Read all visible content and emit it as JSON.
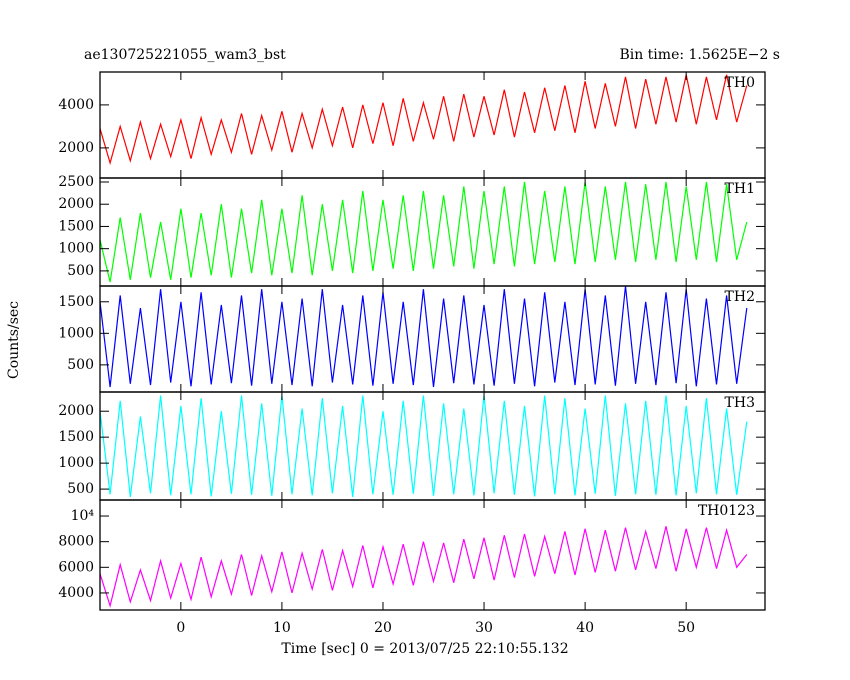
{
  "figure": {
    "title": "ae130725221055_wam3_bst",
    "subtitle": "Bin time: 1.5625E−2 s",
    "xlabel": "Time [sec] 0 = 2013/07/25 22:10:55.132",
    "ylabel": "Counts/sec",
    "xlim": [
      -8,
      57.8
    ],
    "xticks": [
      0,
      10,
      20,
      30,
      40,
      50
    ],
    "x": [
      -8,
      -7,
      -6,
      -5,
      -4,
      -3,
      -2,
      -1,
      0,
      1,
      2,
      3,
      4,
      5,
      6,
      7,
      8,
      9,
      10,
      11,
      12,
      13,
      14,
      15,
      16,
      17,
      18,
      19,
      20,
      21,
      22,
      23,
      24,
      25,
      26,
      27,
      28,
      29,
      30,
      31,
      32,
      33,
      34,
      35,
      36,
      37,
      38,
      39,
      40,
      41,
      42,
      43,
      44,
      45,
      46,
      47,
      48,
      49,
      50,
      51,
      52,
      53,
      54,
      55,
      56
    ]
  },
  "chart_data": [
    {
      "type": "line",
      "label": "TH0",
      "color": "#ff0000",
      "ylim": [
        600,
        5530
      ],
      "yticks": [
        2000,
        4000
      ],
      "values": [
        2900,
        1300,
        3000,
        1400,
        3200,
        1500,
        3100,
        1600,
        3300,
        1500,
        3400,
        1700,
        3300,
        1800,
        3600,
        1700,
        3500,
        1900,
        3700,
        1800,
        3600,
        2000,
        3800,
        2100,
        3900,
        2000,
        4000,
        2200,
        4100,
        2100,
        4300,
        2300,
        4100,
        2400,
        4400,
        2300,
        4500,
        2500,
        4400,
        2600,
        4700,
        2500,
        4600,
        2700,
        4800,
        2800,
        4900,
        2700,
        5100,
        2900,
        5000,
        3000,
        5300,
        2900,
        5200,
        3100,
        5300,
        3200,
        5400,
        3100,
        5300,
        3300,
        5400,
        3200,
        4900
      ]
    },
    {
      "type": "line",
      "label": "TH1",
      "color": "#00ff00",
      "ylim": [
        160,
        2590
      ],
      "yticks": [
        500,
        1000,
        1500,
        2000,
        2500
      ],
      "values": [
        1200,
        250,
        1700,
        300,
        1800,
        350,
        1600,
        300,
        1900,
        350,
        1800,
        400,
        2000,
        350,
        1900,
        450,
        2100,
        400,
        1900,
        450,
        2200,
        400,
        2000,
        500,
        2100,
        450,
        2300,
        500,
        2100,
        550,
        2200,
        500,
        2300,
        550,
        2200,
        600,
        2400,
        550,
        2300,
        650,
        2400,
        600,
        2500,
        650,
        2300,
        700,
        2400,
        650,
        2500,
        700,
        2400,
        750,
        2500,
        700,
        2450,
        750,
        2500,
        700,
        2400,
        750,
        2500,
        700,
        2450,
        750,
        1600
      ]
    },
    {
      "type": "line",
      "label": "TH2",
      "color": "#0000ff",
      "ylim": [
        70,
        1750
      ],
      "yticks": [
        500,
        1000,
        1500
      ],
      "values": [
        1500,
        150,
        1600,
        200,
        1400,
        180,
        1700,
        220,
        1500,
        160,
        1650,
        190,
        1450,
        210,
        1600,
        170,
        1700,
        200,
        1500,
        180,
        1550,
        160,
        1700,
        220,
        1450,
        190,
        1600,
        170,
        1650,
        200,
        1500,
        180,
        1700,
        150,
        1550,
        210,
        1600,
        190,
        1450,
        170,
        1700,
        200,
        1550,
        160,
        1650,
        220,
        1500,
        180,
        1700,
        190,
        1600,
        170,
        1750,
        200,
        1500,
        180,
        1650,
        210,
        1700,
        160,
        1550,
        190,
        1600,
        200,
        1400
      ]
    },
    {
      "type": "line",
      "label": "TH3",
      "color": "#00ffff",
      "ylim": [
        290,
        2370
      ],
      "yticks": [
        500,
        1000,
        1500,
        2000
      ],
      "values": [
        2000,
        400,
        2200,
        350,
        1900,
        420,
        2300,
        380,
        2100,
        400,
        2250,
        360,
        2000,
        410,
        2300,
        390,
        2150,
        370,
        2300,
        400,
        2050,
        380,
        2250,
        420,
        2100,
        350,
        2300,
        400,
        2000,
        390,
        2200,
        410,
        2300,
        370,
        2150,
        400,
        2050,
        380,
        2300,
        420,
        2200,
        390,
        2100,
        360,
        2300,
        400,
        2250,
        380,
        2050,
        410,
        2300,
        370,
        2150,
        400,
        2200,
        390,
        2300,
        380,
        2100,
        420,
        2250,
        400,
        2050,
        390,
        1800
      ]
    },
    {
      "type": "line",
      "label": "TH0123",
      "color": "#ff00ff",
      "ylim": [
        2670,
        11250
      ],
      "yticks": [
        4000,
        6000,
        8000,
        {
          "value": 10000,
          "label": "10⁴"
        }
      ],
      "values": [
        5500,
        3000,
        6200,
        3300,
        5800,
        3400,
        6500,
        3600,
        6300,
        3500,
        6800,
        3700,
        6500,
        3900,
        7000,
        3800,
        6900,
        4100,
        7200,
        4000,
        7100,
        4300,
        7400,
        4200,
        7300,
        4500,
        7700,
        4400,
        7600,
        4700,
        7800,
        4600,
        8000,
        4900,
        7900,
        4800,
        8200,
        5100,
        8300,
        5000,
        8500,
        5200,
        8600,
        5300,
        8400,
        5500,
        8800,
        5400,
        9000,
        5600,
        8900,
        5700,
        9100,
        5800,
        8800,
        5900,
        9200,
        5700,
        9000,
        6000,
        9100,
        5900,
        8900,
        6000,
        7000
      ]
    }
  ]
}
